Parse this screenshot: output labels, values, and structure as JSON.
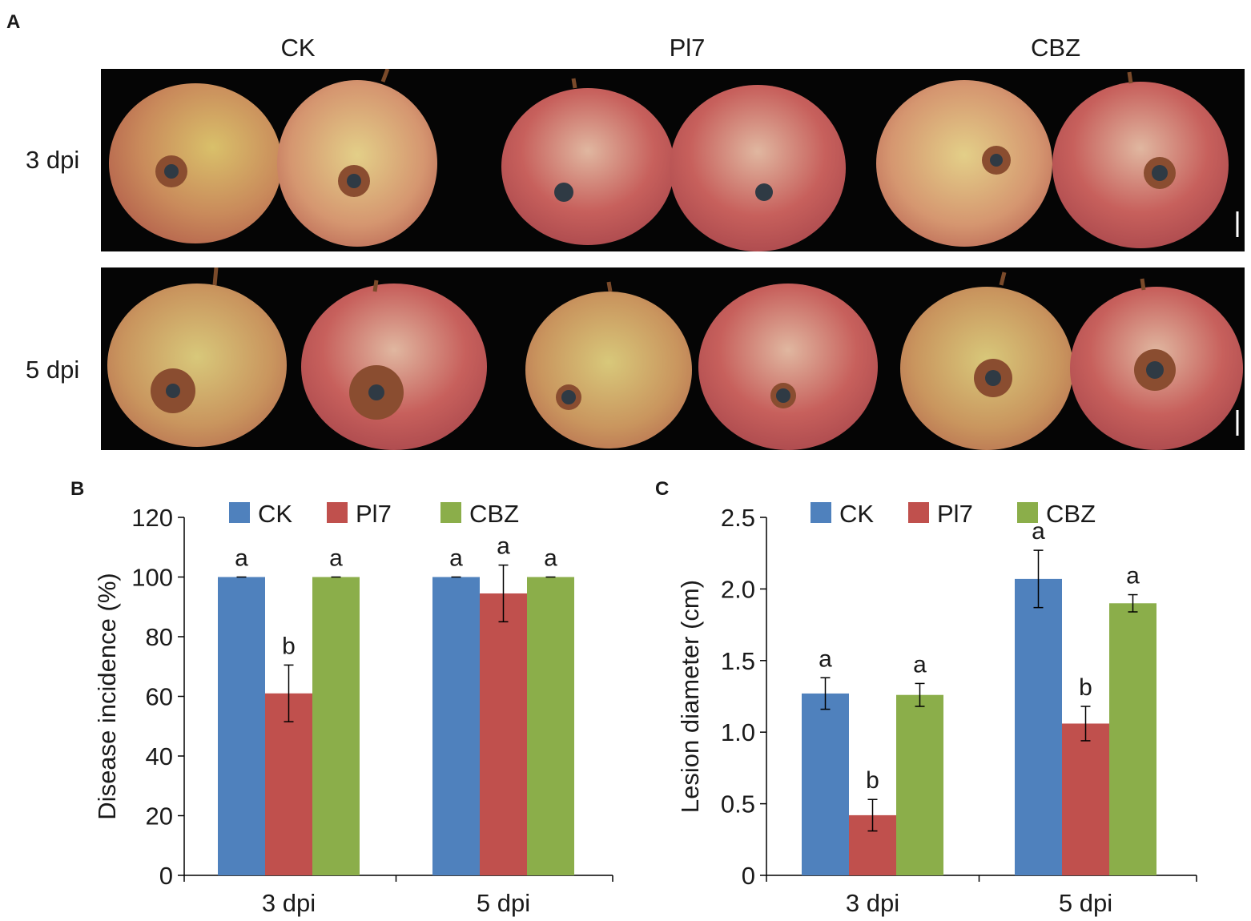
{
  "panel_a": {
    "letter": "A",
    "columns": [
      "CK",
      "Pl7",
      "CBZ"
    ],
    "rows": [
      "3 dpi",
      "5 dpi"
    ]
  },
  "colors": {
    "CK": "#4F81BD",
    "Pl7": "#C0504D",
    "CBZ": "#8BAE4A",
    "photo_bg": "#050505"
  },
  "chart_data": [
    {
      "letter": "B",
      "type": "bar",
      "title": "",
      "ylabel": "Disease incidence (%)",
      "xlabel": "",
      "categories": [
        "3 dpi",
        "5 dpi"
      ],
      "ylim": [
        0,
        120
      ],
      "yticks": [
        "0",
        "20",
        "40",
        "60",
        "80",
        "100",
        "120"
      ],
      "legend": [
        "CK",
        "Pl7",
        "CBZ"
      ],
      "legend_position": "top",
      "series": [
        {
          "name": "CK",
          "values": [
            100,
            100
          ],
          "errors": [
            0,
            0
          ],
          "letters": [
            "a",
            "a"
          ]
        },
        {
          "name": "Pl7",
          "values": [
            61,
            94.5
          ],
          "errors": [
            9.5,
            9.5
          ],
          "letters": [
            "b",
            "a"
          ]
        },
        {
          "name": "CBZ",
          "values": [
            100,
            100
          ],
          "errors": [
            0,
            0
          ],
          "letters": [
            "a",
            "a"
          ]
        }
      ]
    },
    {
      "letter": "C",
      "type": "bar",
      "title": "",
      "ylabel": "Lesion diameter (cm)",
      "xlabel": "",
      "categories": [
        "3 dpi",
        "5 dpi"
      ],
      "ylim": [
        0,
        2.5
      ],
      "yticks": [
        "0",
        "0.5",
        "1.0",
        "1.5",
        "2.0",
        "2.5"
      ],
      "legend": [
        "CK",
        "Pl7",
        "CBZ"
      ],
      "legend_position": "top",
      "series": [
        {
          "name": "CK",
          "values": [
            1.27,
            2.07
          ],
          "errors": [
            0.11,
            0.2
          ],
          "letters": [
            "a",
            "a"
          ]
        },
        {
          "name": "Pl7",
          "values": [
            0.42,
            1.06
          ],
          "errors": [
            0.11,
            0.12
          ],
          "letters": [
            "b",
            "b"
          ]
        },
        {
          "name": "CBZ",
          "values": [
            1.26,
            1.9
          ],
          "errors": [
            0.08,
            0.06
          ],
          "letters": [
            "a",
            "a"
          ]
        }
      ]
    }
  ]
}
